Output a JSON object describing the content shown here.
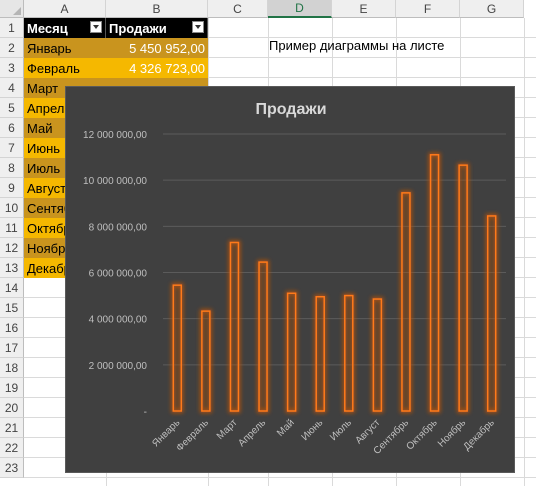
{
  "sheet": {
    "columns": [
      "A",
      "B",
      "C",
      "D",
      "E",
      "F",
      "G"
    ],
    "selected_column": "D",
    "rows": [
      "1",
      "2",
      "3",
      "4",
      "5",
      "6",
      "7",
      "8",
      "9",
      "10",
      "11",
      "12",
      "13",
      "14",
      "15",
      "16",
      "17",
      "18",
      "19",
      "20",
      "21",
      "22",
      "23"
    ]
  },
  "table": {
    "header_month": "Месяц",
    "header_sales": "Продажи",
    "rows": [
      {
        "month": "Январь",
        "sales": "5 450 952,00"
      },
      {
        "month": "Февраль",
        "sales": "4 326 723,00"
      },
      {
        "month": "Март",
        "sales": ""
      },
      {
        "month": "Апрель",
        "sales": ""
      },
      {
        "month": "Май",
        "sales": ""
      },
      {
        "month": "Июнь",
        "sales": ""
      },
      {
        "month": "Июль",
        "sales": ""
      },
      {
        "month": "Август",
        "sales": ""
      },
      {
        "month": "Сентябрь",
        "sales": ""
      },
      {
        "month": "Октябрь",
        "sales": ""
      },
      {
        "month": "Ноябрь",
        "sales": ""
      },
      {
        "month": "Декабрь",
        "sales": ""
      }
    ],
    "row_colors": {
      "odd": "#c9941e",
      "even": "#f5b800"
    }
  },
  "note": "Пример диаграммы на листе",
  "chart_data": {
    "type": "bar",
    "title": "Продажи",
    "categories": [
      "Январь",
      "Февраль",
      "Март",
      "Апрель",
      "Май",
      "Июнь",
      "Июль",
      "Август",
      "Сентябрь",
      "Октябрь",
      "Ноябрь",
      "Декабрь"
    ],
    "values": [
      5450952,
      4326723,
      7300000,
      6450000,
      5100000,
      4950000,
      5000000,
      4850000,
      9450000,
      11100000,
      10650000,
      8450000
    ],
    "ylim": [
      0,
      12000000
    ],
    "yticks": [
      0,
      2000000,
      4000000,
      6000000,
      8000000,
      10000000,
      12000000
    ],
    "ytick_labels": [
      "-",
      "2 000 000,00",
      "4 000 000,00",
      "6 000 000,00",
      "8 000 000,00",
      "10 000 000,00",
      "12 000 000,00"
    ],
    "grid": true,
    "colors": {
      "background": "#404040",
      "bar_outline": "#ff7a1a",
      "bar_glow": "#b8520f",
      "text": "#bfbfbf",
      "title": "#d9d9d9",
      "grid": "#5b5b5b"
    }
  }
}
